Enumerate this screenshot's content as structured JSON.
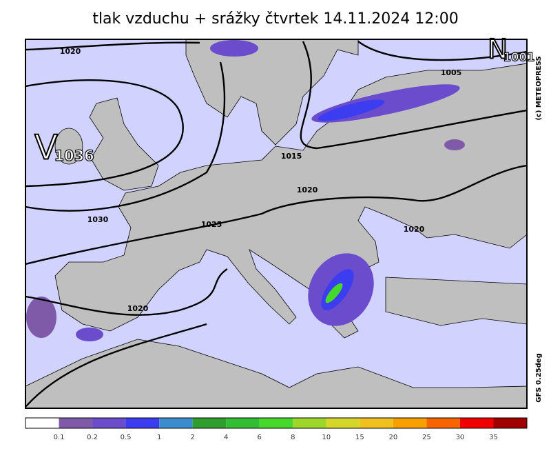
{
  "header": {
    "title": "tlak vzduchu + srážky čtvrtek 14.11.2024 12:00"
  },
  "credits": {
    "copyright": "(c) METEOPRESS",
    "model": "GFS 0.25deg"
  },
  "pressure_centers": [
    {
      "letter": "V",
      "value": "1036"
    },
    {
      "letter": "N",
      "value": "1001"
    }
  ],
  "isobar_labels": [
    "1020",
    "1005",
    "1015",
    "1020",
    "1030",
    "1025",
    "1020",
    "1020"
  ],
  "legend": {
    "colors": [
      "#ffffff",
      "#7e5aa8",
      "#6a4ccc",
      "#3c3cf0",
      "#3a8ccc",
      "#2e9e2e",
      "#32be32",
      "#46d82a",
      "#9ed62a",
      "#d6d62a",
      "#f0c01e",
      "#f8a000",
      "#f86400",
      "#f00000",
      "#a00000"
    ],
    "labels": [
      0.1,
      0.2,
      0.5,
      1,
      2,
      4,
      6,
      8,
      10,
      15,
      20,
      25,
      30,
      35
    ]
  }
}
